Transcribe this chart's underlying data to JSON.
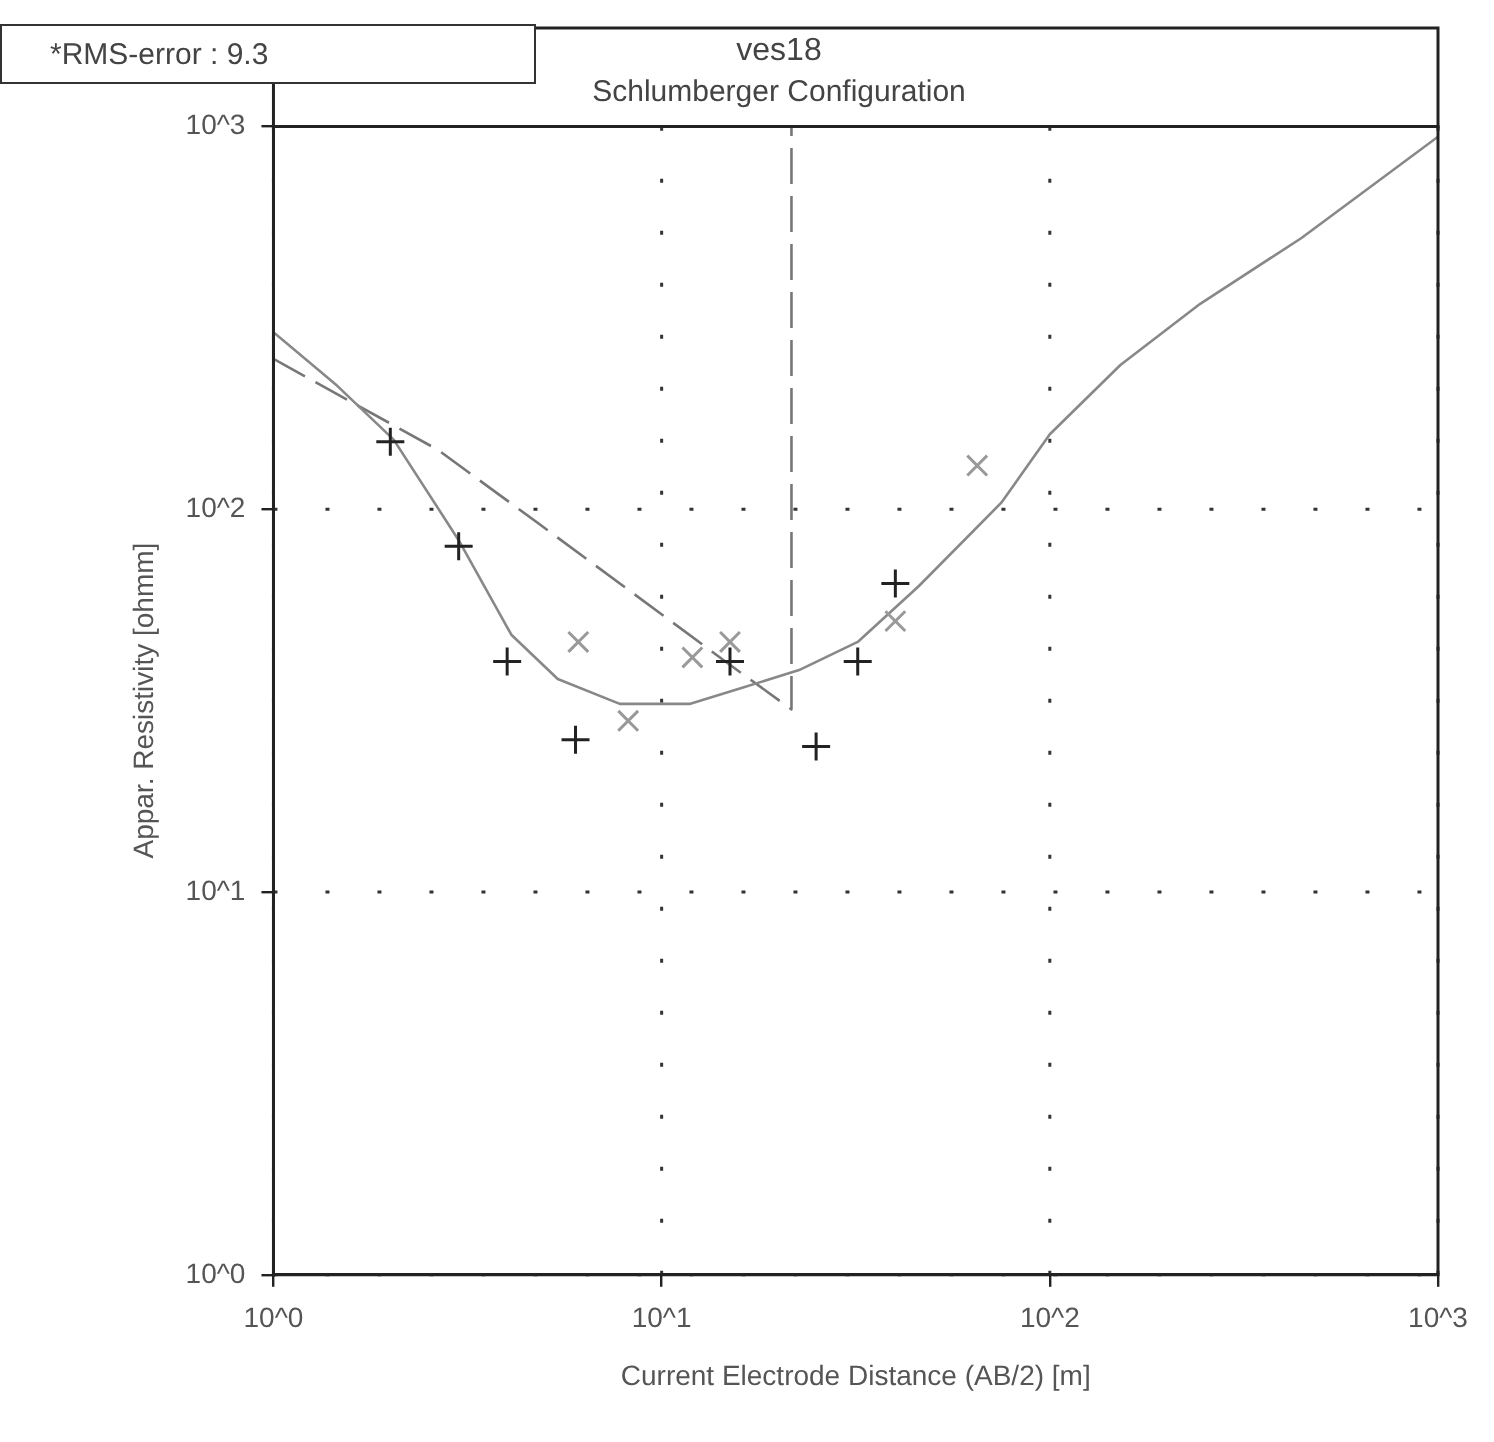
{
  "chart_data": {
    "type": "scatter",
    "title": "ves18",
    "subtitle": "Schlumberger Configuration",
    "xlabel": "Current Electrode Distance (AB/2) [m]",
    "ylabel": "Appar. Resistivity [ohmm]",
    "annotations": [
      "*RMS-error :  9.3"
    ],
    "log": "xy",
    "xlim": [
      1,
      1000
    ],
    "ylim": [
      1,
      1000
    ],
    "xticks": [
      {
        "value": 1,
        "label": "10^0"
      },
      {
        "value": 10,
        "label": "10^1"
      },
      {
        "value": 100,
        "label": "10^2"
      },
      {
        "value": 1000,
        "label": "10^3"
      }
    ],
    "yticks": [
      {
        "value": 1,
        "label": "10^0"
      },
      {
        "value": 10,
        "label": "10^1"
      },
      {
        "value": 100,
        "label": "10^2"
      },
      {
        "value": 1000,
        "label": "10^3"
      }
    ],
    "grid": true,
    "legend": false,
    "series": [
      {
        "type": "scatter",
        "marker": "cross",
        "color": "#222222",
        "x": [
          2,
          3,
          4,
          6,
          15,
          25,
          32,
          40
        ],
        "values": [
          150,
          80,
          40,
          25,
          40,
          24,
          40,
          64
        ]
      },
      {
        "type": "scatter",
        "marker": "cross",
        "color": "#999999",
        "x": [
          6.1,
          8.2,
          12,
          15,
          40,
          65
        ],
        "values": [
          45,
          28,
          41,
          45,
          51,
          130
        ]
      },
      {
        "type": "line",
        "marker": "none",
        "line_style": "solid",
        "color": "#888888",
        "x": [
          1,
          1.46,
          2.04,
          3,
          4.1,
          5.4,
          7.8,
          11.8,
          15.9,
          22.6,
          32,
          46,
          75,
          100,
          152,
          244,
          445,
          1000
        ],
        "values": [
          290,
          210,
          152,
          83,
          47,
          36,
          31,
          31,
          34,
          38,
          45,
          63,
          104,
          157,
          238,
          344,
          511,
          940
        ]
      },
      {
        "type": "line",
        "marker": "none",
        "line_style": "dashed",
        "color": "#777777",
        "x": [
          1,
          2.65,
          4.8,
          8.5,
          14.6,
          21.6,
          21.6
        ],
        "values": [
          247,
          143,
          92,
          60,
          40,
          30,
          1000
        ]
      }
    ]
  }
}
